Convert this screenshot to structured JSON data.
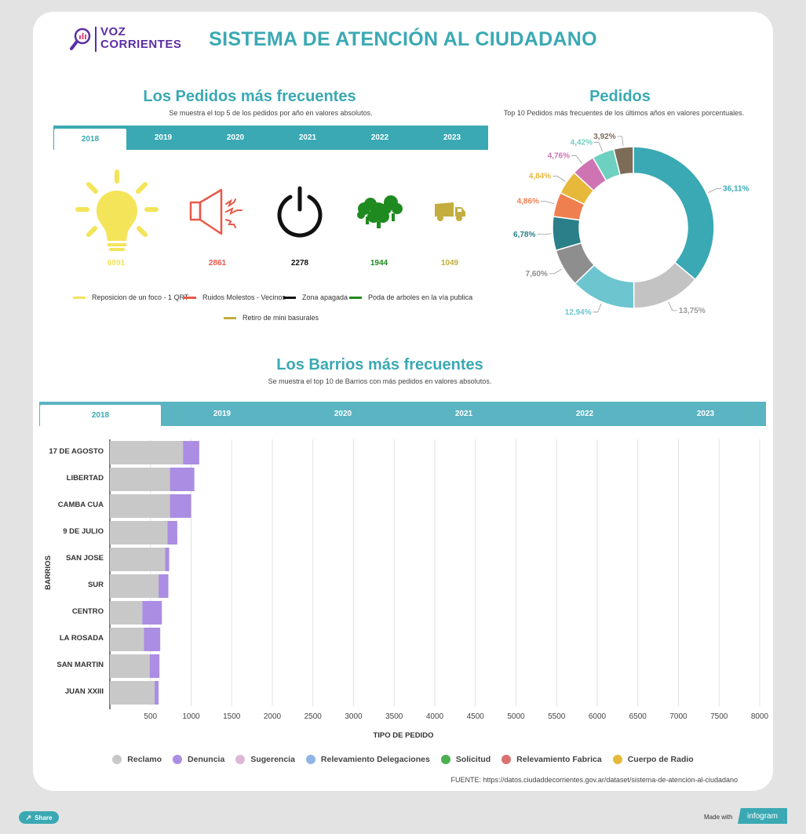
{
  "logo": {
    "line1": "VOZ",
    "line2": "CORRIENTES"
  },
  "title": "SISTEMA DE ATENCIÓN AL CIUDADANO",
  "pedidos_section": {
    "title": "Los Pedidos más frecuentes",
    "subtitle": "Se muestra el top 5 de los pedidos por año en valores absolutos.",
    "tabs": [
      "2018",
      "2019",
      "2020",
      "2021",
      "2022",
      "2023"
    ],
    "active_tab": "2018",
    "items": [
      {
        "icon": "lightbulb-icon",
        "value": "6891",
        "color": "#f3e45a",
        "label": "Reposicion de un foco - 1 QRT"
      },
      {
        "icon": "speaker-noise-icon",
        "value": "2861",
        "color": "#e8594a",
        "label": "Ruidos Molestos - Vecinos"
      },
      {
        "icon": "power-icon",
        "value": "2278",
        "color": "#111111",
        "label": "Zona apagada"
      },
      {
        "icon": "trees-icon",
        "value": "1944",
        "color": "#1f8a1f",
        "label": "Poda de arboles en la vía publica"
      },
      {
        "icon": "truck-icon",
        "value": "1049",
        "color": "#c2ad3e",
        "label": "Retiro de mini basurales"
      }
    ]
  },
  "pedidos_pie": {
    "title": "Pedidos",
    "subtitle": "Top 10 Pedidos más frecuentes de los últimos  años en valores porcentuales.",
    "slices": [
      {
        "label": "36,11%",
        "value": 36.11,
        "color": "#3aa9b3"
      },
      {
        "label": "13,75%",
        "value": 13.75,
        "color": "#c3c3c3"
      },
      {
        "label": "12,94%",
        "value": 12.94,
        "color": "#6cc5cf"
      },
      {
        "label": "7,60%",
        "value": 7.6,
        "color": "#8e8e8e"
      },
      {
        "label": "6,78%",
        "value": 6.78,
        "color": "#2a7f89"
      },
      {
        "label": "4,86%",
        "value": 4.86,
        "color": "#f07f4f"
      },
      {
        "label": "4,84%",
        "value": 4.84,
        "color": "#e6b93a"
      },
      {
        "label": "4,76%",
        "value": 4.76,
        "color": "#cf74b3"
      },
      {
        "label": "4,42%",
        "value": 4.42,
        "color": "#6dd0c0"
      },
      {
        "label": "3,92%",
        "value": 3.92,
        "color": "#7c6c58"
      }
    ]
  },
  "barrios_section": {
    "title": "Los Barrios más frecuentes",
    "subtitle": "Se muestra el top 10 de Barrios con más pedidos en valores absolutos.",
    "tabs": [
      "2018",
      "2019",
      "2020",
      "2021",
      "2022",
      "2023"
    ],
    "active_tab": "2018"
  },
  "chart_data": {
    "type": "bar",
    "orientation": "horizontal",
    "stacked": true,
    "categories": [
      "17 DE AGOSTO",
      "LIBERTAD",
      "CAMBA CUA",
      "9 DE JULIO",
      "SAN JOSE",
      "SUR",
      "CENTRO",
      "LA ROSADA",
      "SAN MARTIN",
      "JUAN XXIII"
    ],
    "series": [
      {
        "name": "Reclamo",
        "color": "#c8c8c8",
        "values": [
          900,
          740,
          740,
          710,
          680,
          600,
          400,
          420,
          490,
          550
        ]
      },
      {
        "name": "Denuncia",
        "color": "#ab8de3",
        "values": [
          200,
          300,
          260,
          120,
          50,
          120,
          240,
          200,
          120,
          50
        ]
      },
      {
        "name": "Sugerencia",
        "color": "#dcb8d6",
        "values": [
          0,
          0,
          0,
          0,
          0,
          0,
          0,
          0,
          0,
          0
        ]
      },
      {
        "name": "Relevamiento Delegaciones",
        "color": "#8fb4e6",
        "values": [
          0,
          0,
          0,
          0,
          0,
          0,
          0,
          0,
          0,
          0
        ]
      },
      {
        "name": "Solicitud",
        "color": "#4caf50",
        "values": [
          0,
          0,
          0,
          0,
          0,
          0,
          0,
          0,
          0,
          0
        ]
      },
      {
        "name": "Relevamiento Fabrica",
        "color": "#d9736f",
        "values": [
          0,
          0,
          0,
          0,
          0,
          0,
          0,
          0,
          0,
          0
        ]
      },
      {
        "name": "Cuerpo de Radio",
        "color": "#e6b93a",
        "values": [
          0,
          0,
          0,
          0,
          0,
          0,
          0,
          0,
          0,
          0
        ]
      }
    ],
    "xticks": [
      "500",
      "1000",
      "1500",
      "2000",
      "2500",
      "3000",
      "3500",
      "4000",
      "4500",
      "5000",
      "5500",
      "6000",
      "6500",
      "7000",
      "7500",
      "8000"
    ],
    "xlim": [
      0,
      8000
    ],
    "xlabel": "TIPO DE PEDIDO",
    "ylabel": "BARRIOS",
    "grid": true,
    "legend": "bottom"
  },
  "source": "FUENTE: https://datos.ciudaddecorrientes.gov.ar/dataset/sistema-de-atencion-al-ciudadano",
  "footer": {
    "share": "Share",
    "made_with": "Made with",
    "brand": "infogram"
  }
}
